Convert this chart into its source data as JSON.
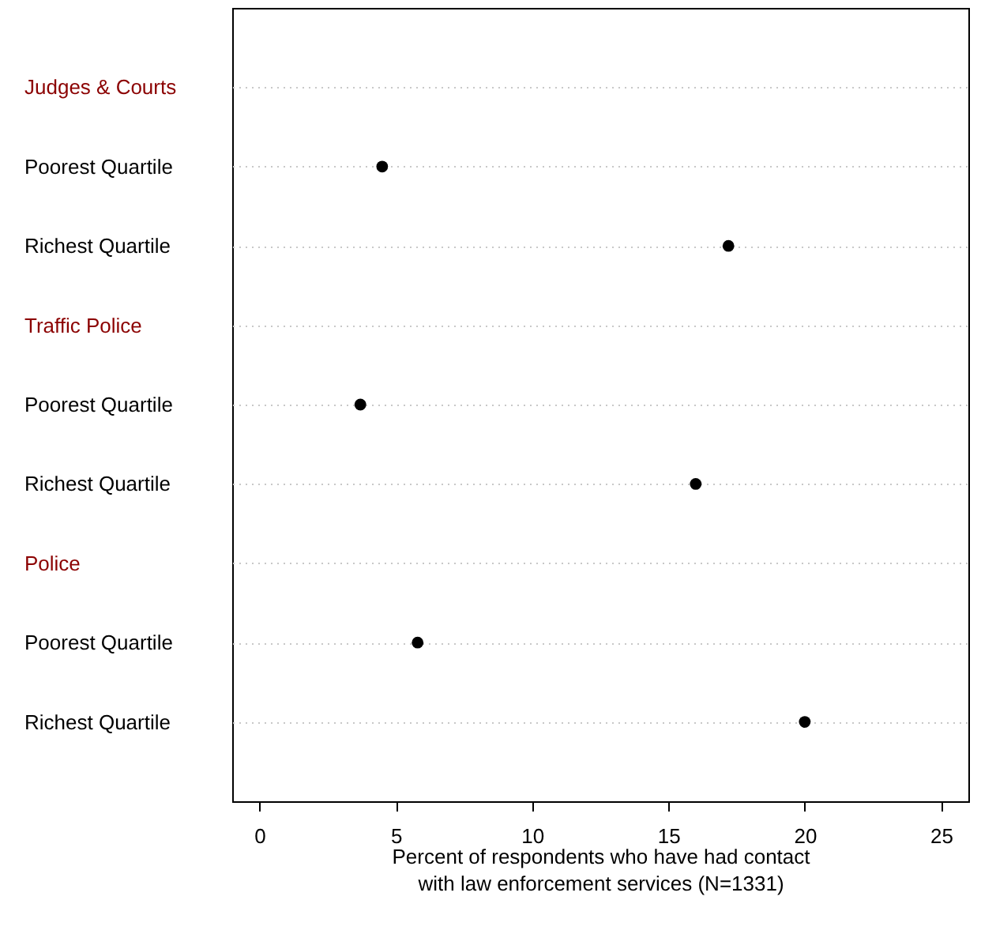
{
  "chart_data": {
    "type": "scatter",
    "categories": [
      "Judges & Courts",
      "Poorest Quartile",
      "Richest Quartile",
      "Traffic Police",
      "Poorest Quartile",
      "Richest Quartile",
      "Police",
      "Poorest Quartile",
      "Richest Quartile"
    ],
    "values": [
      null,
      4.5,
      17.2,
      null,
      3.7,
      16.0,
      null,
      5.8,
      20.0
    ],
    "color": "#000000",
    "xlabel": "Percent of respondents who have had contact\nwith law enforcement services (N=1331)",
    "xlim": [
      -1,
      26
    ],
    "xticks": [
      0,
      5,
      10,
      15,
      20,
      25
    ],
    "grid": "y",
    "marker": "circle",
    "orientation": "horizontal"
  }
}
